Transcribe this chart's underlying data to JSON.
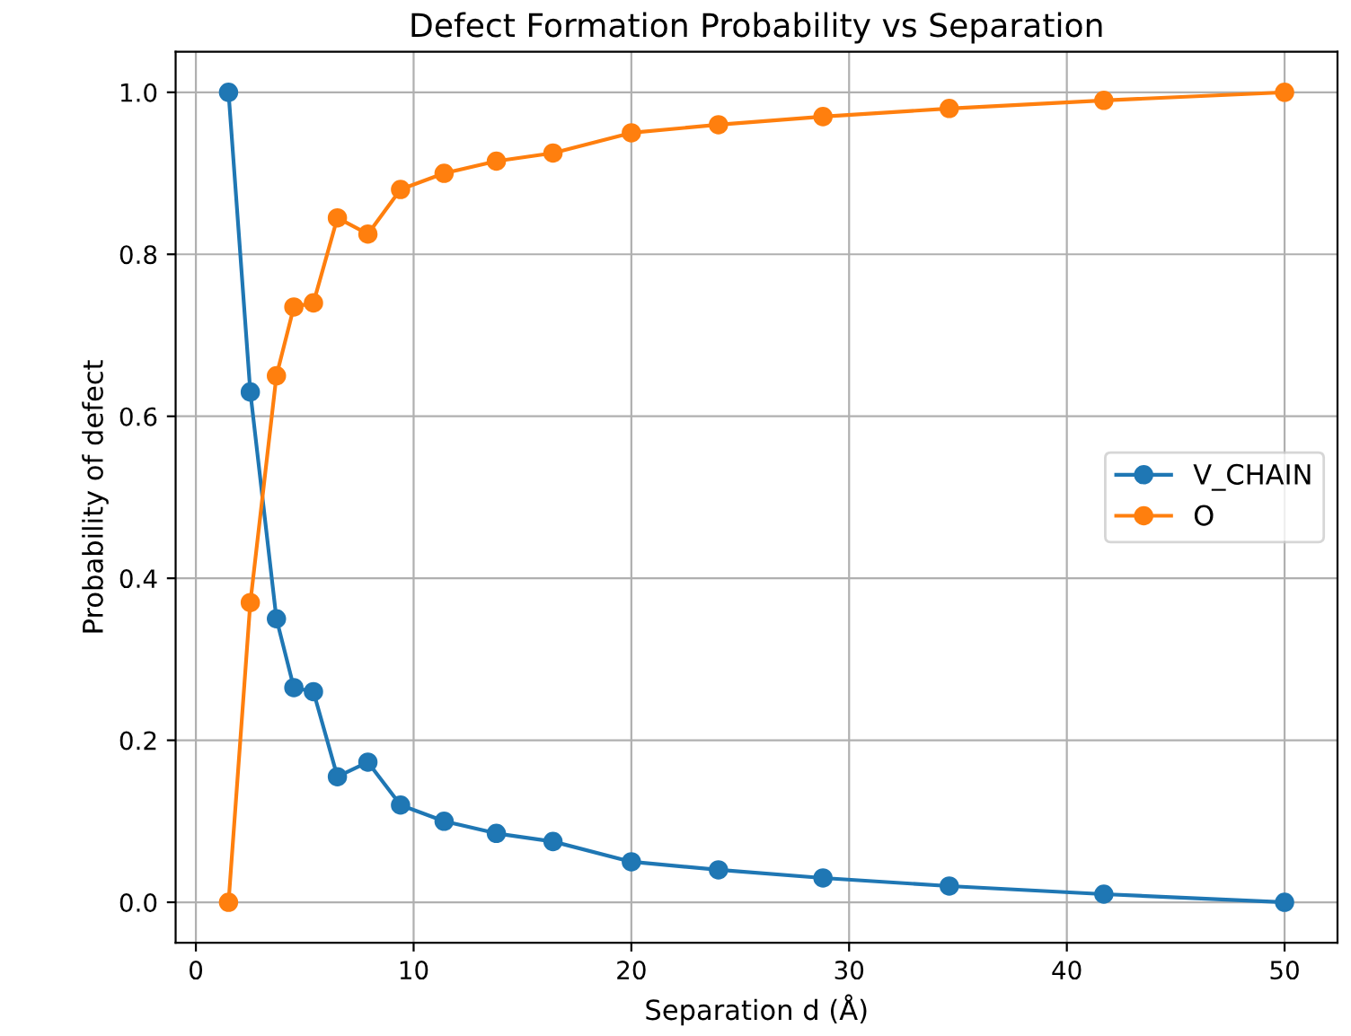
{
  "chart_data": {
    "type": "line",
    "title": "Defect Formation Probability vs Separation",
    "xlabel": "Separation d (Å)",
    "ylabel": "Probability of defect",
    "x": [
      1.5,
      2.5,
      3.7,
      4.5,
      5.4,
      6.5,
      7.9,
      9.4,
      11.4,
      13.8,
      16.4,
      20,
      24,
      28.8,
      34.6,
      41.7,
      50
    ],
    "series": [
      {
        "name": "V_CHAIN",
        "color": "#1f77b4",
        "values": [
          1.0,
          0.63,
          0.35,
          0.265,
          0.26,
          0.155,
          0.173,
          0.12,
          0.1,
          0.085,
          0.075,
          0.05,
          0.04,
          0.03,
          0.02,
          0.01,
          0.0
        ]
      },
      {
        "name": "O",
        "color": "#ff7f0e",
        "values": [
          0.0,
          0.37,
          0.65,
          0.735,
          0.74,
          0.845,
          0.825,
          0.88,
          0.9,
          0.915,
          0.925,
          0.95,
          0.96,
          0.97,
          0.98,
          0.99,
          1.0
        ]
      }
    ],
    "xlim": [
      -0.93,
      52.43
    ],
    "xticks": [
      0,
      10,
      20,
      30,
      40,
      50
    ],
    "ylim": [
      -0.05,
      1.05
    ],
    "yticks": [
      {
        "value": 0,
        "label": "0.0"
      },
      {
        "value": 0.2,
        "label": "0.2"
      },
      {
        "value": 0.4,
        "label": "0.4"
      },
      {
        "value": 0.6,
        "label": "0.6"
      },
      {
        "value": 0.8,
        "label": "0.8"
      },
      {
        "value": 1.0,
        "label": "1.0"
      }
    ],
    "grid": true,
    "legend": "right",
    "marker": "circle",
    "line_style": "solid"
  }
}
